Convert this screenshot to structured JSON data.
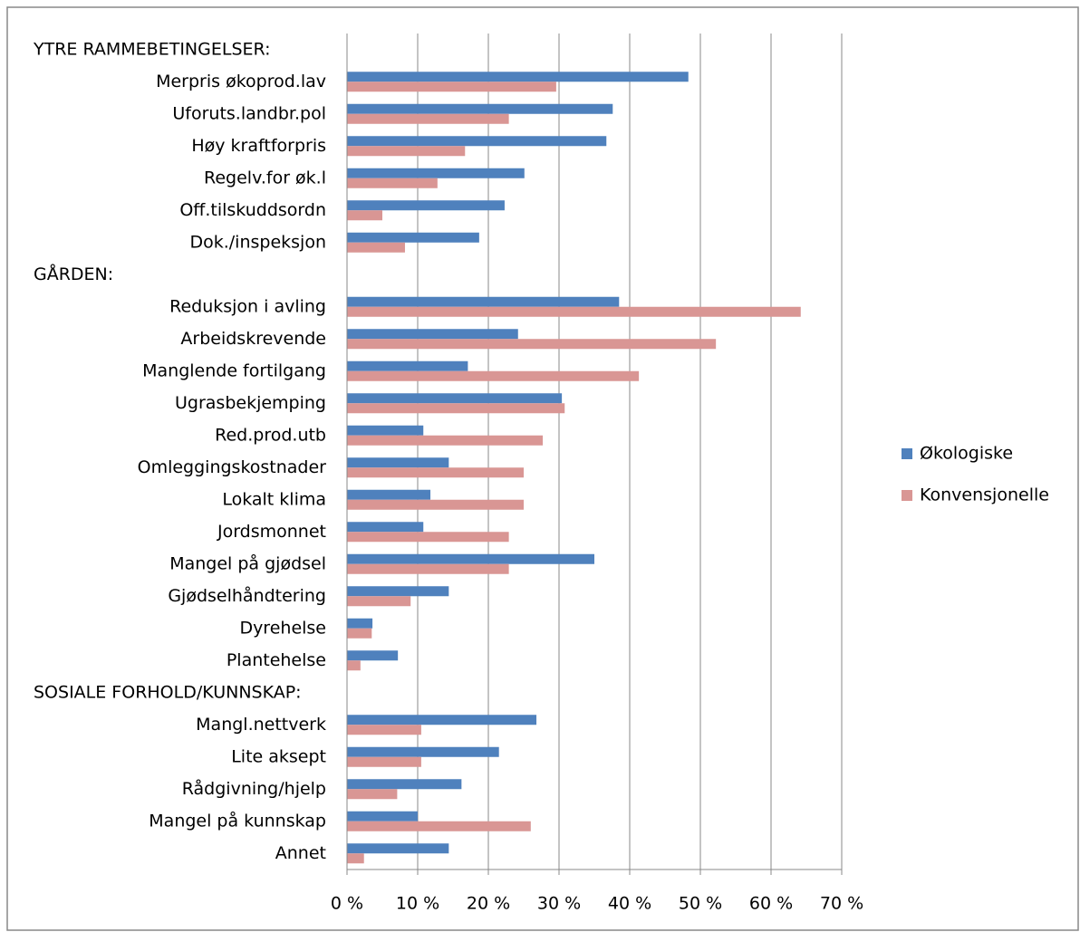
{
  "chart_data": {
    "type": "hbar",
    "categories": [
      "YTRE RAMMEBETINGELSER:",
      "Merpris økoprod.lav",
      "Uforuts.landbr.pol",
      "Høy kraftforpris",
      "Regelv.for øk.l",
      "Off.tilskuddsordn",
      "Dok./inspeksjon",
      "GÅRDEN:",
      "Reduksjon i avling",
      "Arbeidskrevende",
      "Manglende fortilgang",
      "Ugrasbekjemping",
      "Red.prod.utb",
      "Omleggingskostnader",
      "Lokalt klima",
      "Jordsmonnet",
      "Mangel på gjødsel",
      "Gjødselhåndtering",
      "Dyrehelse",
      "Plantehelse",
      "SOSIALE FORHOLD/KUNNSKAP:",
      "Mangl.nettverk",
      "Lite aksept",
      "Rådgivning/hjelp",
      "Mangel på kunnskap",
      "Annet"
    ],
    "series": [
      {
        "name": "Økologiske",
        "color": "#4f81bd",
        "values": [
          null,
          48.3,
          37.6,
          36.7,
          25.1,
          22.3,
          18.7,
          null,
          38.5,
          24.2,
          17.1,
          30.4,
          10.8,
          14.4,
          11.8,
          10.8,
          35.0,
          14.4,
          3.6,
          7.2,
          null,
          26.8,
          21.5,
          16.2,
          10.0,
          14.4
        ]
      },
      {
        "name": "Konvensjonelle",
        "color": "#d99694",
        "values": [
          null,
          29.6,
          22.9,
          16.7,
          12.8,
          5.0,
          8.2,
          null,
          64.2,
          52.2,
          41.3,
          30.8,
          27.7,
          25.0,
          25.0,
          22.9,
          22.9,
          9.0,
          3.5,
          1.9,
          null,
          10.5,
          10.5,
          7.1,
          26.0,
          2.4
        ]
      }
    ],
    "xlim": [
      0,
      70
    ],
    "xticks": [
      {
        "value": 0,
        "label": "0 %"
      },
      {
        "value": 10,
        "label": "10 %"
      },
      {
        "value": 20,
        "label": "20 %"
      },
      {
        "value": 30,
        "label": "30 %"
      },
      {
        "value": 40,
        "label": "40 %"
      },
      {
        "value": 50,
        "label": "50 %"
      },
      {
        "value": 60,
        "label": "60 %"
      },
      {
        "value": 70,
        "label": "70 %"
      }
    ],
    "grid": true,
    "legend": "right"
  }
}
